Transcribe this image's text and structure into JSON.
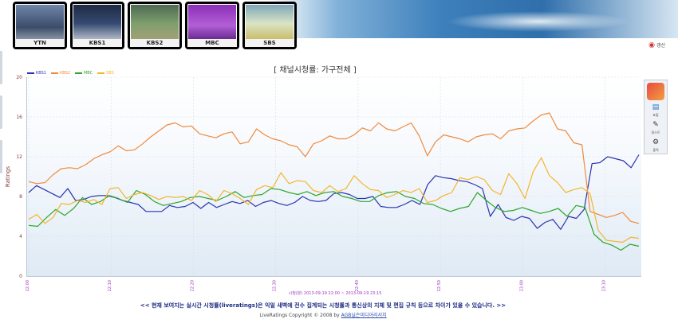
{
  "channels": [
    {
      "label": "YTN",
      "color": "#8a2be2"
    },
    {
      "label": "KBS1",
      "color": "#3a3fa8"
    },
    {
      "label": "KBS2",
      "color": "#f08a3a"
    },
    {
      "label": "MBC",
      "color": "#3aaa3a"
    },
    {
      "label": "SBS",
      "color": "#f2b21c"
    }
  ],
  "refresh_label": "갱신",
  "chart_data": {
    "type": "line",
    "title": "[ 채널시청률: 가구전체 ]",
    "ylabel": "Ratings",
    "xlabel": "시청(분) 2013-09-19 22:00 ~ 2013-09-19 23:15",
    "ylim": [
      0,
      20
    ],
    "yticks": [
      "0",
      "4",
      "8",
      "12",
      "16",
      "20"
    ],
    "xticks": [
      "22:00",
      "22:10",
      "22:20",
      "22:30",
      "22:40",
      "22:50",
      "23:00",
      "23:10"
    ],
    "grid": true,
    "legend": "top-left",
    "series": [
      {
        "name": "KBS1",
        "color": "#2b34b0",
        "values": [
          8.4,
          9.1,
          8.7,
          8.3,
          7.9,
          8.8,
          7.6,
          7.7,
          8.0,
          8.1,
          8.1,
          7.9,
          7.6,
          7.4,
          7.2,
          6.5,
          6.5,
          6.5,
          7.1,
          6.9,
          7.0,
          7.4,
          6.8,
          7.4,
          6.9,
          7.2,
          7.5,
          7.3,
          7.6,
          7.0,
          7.4,
          7.6,
          7.3,
          7.1,
          7.4,
          8.0,
          7.6,
          7.5,
          7.6,
          8.3,
          8.4,
          8.2,
          7.8,
          7.8,
          8.0,
          7.0,
          6.9,
          6.9,
          7.2,
          7.6,
          7.2,
          9.2,
          10.1,
          9.9,
          9.8,
          9.6,
          9.5,
          9.2,
          8.8,
          6.0,
          7.2,
          5.9,
          5.6,
          6.0,
          5.8,
          4.8,
          5.4,
          5.7,
          4.7,
          6.0,
          5.8,
          6.7,
          11.3,
          11.4,
          12.0,
          11.8,
          11.6,
          10.9,
          12.2
        ]
      },
      {
        "name": "KBS2",
        "color": "#f08a3a",
        "values": [
          9.5,
          9.3,
          9.4,
          10.2,
          10.8,
          10.9,
          10.8,
          11.2,
          11.8,
          12.2,
          12.5,
          13.1,
          12.6,
          12.7,
          13.3,
          14.0,
          14.6,
          15.2,
          15.4,
          15.0,
          15.1,
          14.3,
          14.1,
          13.9,
          14.3,
          14.5,
          13.3,
          13.5,
          14.8,
          14.2,
          13.8,
          13.6,
          13.2,
          13.0,
          12.0,
          13.3,
          13.6,
          14.1,
          13.8,
          13.8,
          14.2,
          14.9,
          14.6,
          15.4,
          14.8,
          14.6,
          15.0,
          15.4,
          14.1,
          12.1,
          13.5,
          14.2,
          14.0,
          13.8,
          13.5,
          14.0,
          14.2,
          14.3,
          13.8,
          14.6,
          14.8,
          14.9,
          15.6,
          16.2,
          16.4,
          14.8,
          14.6,
          13.4,
          13.2,
          6.5,
          6.2,
          5.9,
          6.1,
          6.4,
          5.5,
          5.3
        ]
      },
      {
        "name": "MBC",
        "color": "#2ea62e",
        "values": [
          5.1,
          5.0,
          5.9,
          6.7,
          6.1,
          6.8,
          7.9,
          7.2,
          7.5,
          8.1,
          7.8,
          7.4,
          8.6,
          8.2,
          7.5,
          7.1,
          7.3,
          7.5,
          7.9,
          8.0,
          7.8,
          7.6,
          8.0,
          8.5,
          7.9,
          8.1,
          8.2,
          8.8,
          8.7,
          8.4,
          8.2,
          8.5,
          8.1,
          8.4,
          8.5,
          8.0,
          7.8,
          7.5,
          7.5,
          8.1,
          8.4,
          8.5,
          8.0,
          7.8,
          7.3,
          7.2,
          6.8,
          6.5,
          6.8,
          7.0,
          8.4,
          7.6,
          6.9,
          6.5,
          6.6,
          6.9,
          6.6,
          6.3,
          6.5,
          6.8,
          6.0,
          7.1,
          6.9,
          4.2,
          3.4,
          3.1,
          2.6,
          3.2,
          3.0
        ]
      },
      {
        "name": "SBS",
        "color": "#f4b52a",
        "values": [
          5.7,
          6.2,
          5.3,
          5.9,
          7.3,
          7.2,
          7.6,
          7.4,
          7.7,
          7.2,
          8.8,
          8.9,
          7.8,
          8.2,
          8.4,
          8.1,
          7.7,
          8.0,
          7.9,
          8.0,
          7.6,
          8.6,
          8.2,
          7.5,
          8.6,
          8.3,
          7.8,
          7.2,
          8.7,
          9.1,
          8.9,
          10.4,
          9.3,
          9.6,
          9.5,
          8.6,
          8.4,
          9.1,
          8.5,
          8.8,
          10.1,
          9.3,
          8.7,
          8.6,
          7.9,
          8.2,
          8.6,
          8.4,
          8.8,
          7.4,
          7.6,
          8.1,
          8.4,
          9.9,
          9.7,
          10.0,
          9.7,
          8.6,
          8.2,
          10.3,
          9.3,
          7.8,
          10.5,
          11.9,
          10.1,
          9.4,
          8.4,
          8.7,
          8.9,
          8.3,
          4.6,
          3.6,
          3.5,
          3.4,
          3.9,
          3.8
        ]
      }
    ]
  },
  "tools": [
    {
      "icon": "chart-icon",
      "label": "표출"
    },
    {
      "icon": "pencil-icon",
      "label": "휘스트"
    },
    {
      "icon": "gear-icon",
      "label": "출력"
    }
  ],
  "notice": "<< 현재 보여지는 실시간 시청률(liveratings)은 익일 새벽에 전수 집계되는 시청률과 통신상의 지체 및 편집 규칙 등으로 차이가 있을 수 있습니다. >>",
  "footer_prefix": "LiveRatings Copyright © 2008 by",
  "footer_link": "AGB닐슨미디어리서치"
}
